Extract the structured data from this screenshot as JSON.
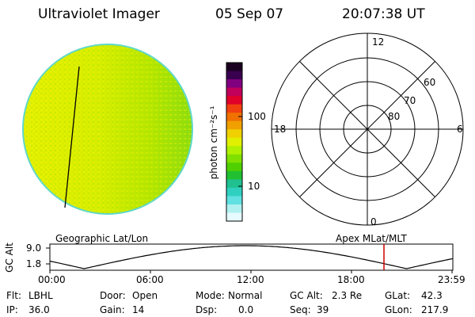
{
  "header": {
    "instrument": "Ultraviolet Imager",
    "date": "05 Sep 07",
    "time": "20:07:38 UT"
  },
  "colorbar": {
    "unit_label": "photon cm⁻²s⁻¹",
    "ticks": [
      "100",
      "10"
    ],
    "colors": [
      "#1a0020",
      "#3a0050",
      "#800080",
      "#c0005a",
      "#e0002a",
      "#f04010",
      "#f07000",
      "#f0a000",
      "#f0d000",
      "#e0f000",
      "#b0f000",
      "#80e000",
      "#50d000",
      "#20c030",
      "#20c090",
      "#30d0c0",
      "#60e0e0",
      "#b0f0f0",
      "#e6fbff"
    ]
  },
  "polar_plot": {
    "mlt_labels": {
      "top": "12",
      "bottom": "0",
      "left": "18",
      "right": "6"
    },
    "lat_labels": [
      "60",
      "70",
      "80"
    ]
  },
  "timeline": {
    "left_label": "Geographic Lat/Lon",
    "right_label": "Apex MLat/MLT",
    "y_axis_label": "GC Alt",
    "y_ticks": [
      "9.0",
      "1.8"
    ],
    "x_ticks": [
      "00:00",
      "06:00",
      "12:00",
      "18:00",
      "23:59"
    ],
    "marker_color": "#cc0000"
  },
  "footer": {
    "flt_label": "Flt:",
    "flt_value": "LBHL",
    "ip_label": "IP:",
    "ip_value": "36.0",
    "door_label": "Door:",
    "door_value": "Open",
    "gain_label": "Gain:",
    "gain_value": "14",
    "mode_label": "Mode:",
    "mode_value": "Normal",
    "dsp_label": "Dsp:",
    "dsp_value": "0.0",
    "gcalt_label": "GC Alt:",
    "gcalt_value": "2.3 Re",
    "seq_label": "Seq:",
    "seq_value": "39",
    "glat_label": "GLat:",
    "glat_value": "42.3",
    "glon_label": "GLon:",
    "glon_value": "217.9"
  }
}
